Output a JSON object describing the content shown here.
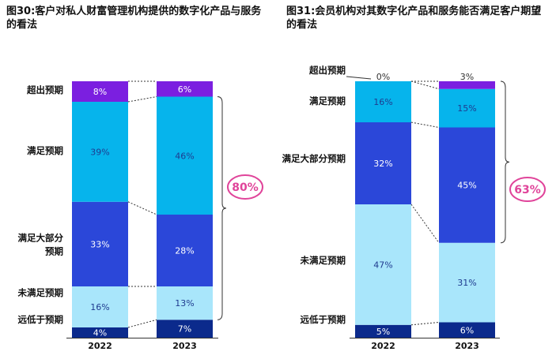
{
  "colors": {
    "exceeded": "#7b1fe0",
    "met": "#06b4ec",
    "mostly_met": "#2b47d9",
    "not_met": "#a9e6fb",
    "far_below": "#0b2a8c",
    "brace": "#333333",
    "badge": "#e0449a"
  },
  "chart_data": [
    {
      "type": "bar",
      "stacked": true,
      "title": "图30:客户对私人财富管理机构提供的数字化产品与服务的看法",
      "categories": [
        "2022",
        "2023"
      ],
      "series": [
        {
          "name": "远低于预期",
          "values": [
            4,
            7
          ]
        },
        {
          "name": "未满足预期",
          "values": [
            16,
            13
          ]
        },
        {
          "name": "满足大部分预期",
          "values": [
            33,
            28
          ]
        },
        {
          "name": "满足预期",
          "values": [
            39,
            46
          ]
        },
        {
          "name": "超出预期",
          "values": [
            8,
            6
          ]
        }
      ],
      "segment_labels": {
        "2022": [
          "4%",
          "16%",
          "33%",
          "39%",
          "8%"
        ],
        "2023": [
          "7%",
          "13%",
          "28%",
          "46%",
          "6%"
        ]
      },
      "row_labels": [
        "远低于预期",
        "未满足预期",
        "满足大部分\n预期",
        "满足预期",
        "超出预期"
      ],
      "callout": "80%"
    },
    {
      "type": "bar",
      "stacked": true,
      "title": "图31:会员机构对其数字化产品和服务能否满足客户期望的看法",
      "categories": [
        "2022",
        "2023"
      ],
      "series": [
        {
          "name": "远低于预期",
          "values": [
            5,
            6
          ]
        },
        {
          "name": "未满足预期",
          "values": [
            47,
            31
          ]
        },
        {
          "name": "满足大部分预期",
          "values": [
            32,
            45
          ]
        },
        {
          "name": "满足预期",
          "values": [
            16,
            15
          ]
        },
        {
          "name": "超出预期",
          "values": [
            0,
            3
          ]
        }
      ],
      "segment_labels": {
        "2022": [
          "5%",
          "47%",
          "32%",
          "16%",
          "0%"
        ],
        "2023": [
          "6%",
          "31%",
          "45%",
          "15%",
          "3%"
        ]
      },
      "row_labels": [
        "远低于预期",
        "未满足预期",
        "满足大部分预期",
        "满足预期",
        "超出预期"
      ],
      "callout": "63%"
    }
  ]
}
